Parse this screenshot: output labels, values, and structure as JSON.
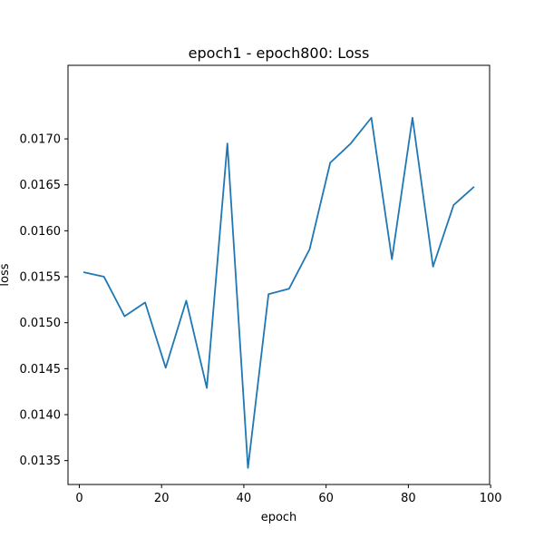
{
  "chart_data": {
    "type": "line",
    "title": "epoch1 - epoch800: Loss",
    "xlabel": "epoch",
    "ylabel": "loss",
    "xlim": [
      -2.75,
      99.75
    ],
    "ylim": [
      0.01324,
      0.0178
    ],
    "x_ticks": [
      0,
      20,
      40,
      60,
      80,
      100
    ],
    "x_tick_labels": [
      "0",
      "20",
      "40",
      "60",
      "80",
      "100"
    ],
    "y_ticks": [
      0.0135,
      0.014,
      0.0145,
      0.015,
      0.0155,
      0.016,
      0.0165,
      0.017
    ],
    "y_tick_labels": [
      "0.0135",
      "0.0140",
      "0.0145",
      "0.0150",
      "0.0155",
      "0.0160",
      "0.0165",
      "0.0170"
    ],
    "grid": false,
    "line_color": "#1f77b4",
    "series": [
      {
        "x": [
          1,
          6,
          11,
          16,
          21,
          26,
          31,
          36,
          41,
          46,
          51,
          56,
          61,
          66,
          71,
          76,
          81,
          86,
          91,
          96
        ],
        "values": [
          0.01555,
          0.0155,
          0.01507,
          0.01522,
          0.01451,
          0.01524,
          0.01429,
          0.01695,
          0.01342,
          0.01531,
          0.01537,
          0.0158,
          0.01674,
          0.01695,
          0.01723,
          0.01569,
          0.01723,
          0.01561,
          0.01628,
          0.01648
        ]
      }
    ]
  }
}
